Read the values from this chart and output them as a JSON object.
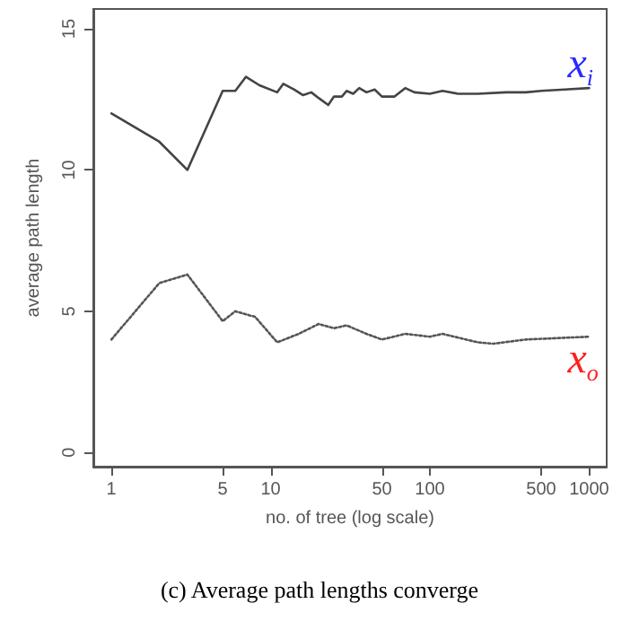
{
  "chart_data": {
    "type": "line",
    "title": "(c) Average path lengths converge",
    "xlabel": "no. of tree (log scale)",
    "ylabel": "average path length",
    "log": "x",
    "xlim": [
      0.77,
      1290
    ],
    "xticks": [
      1,
      5,
      10,
      50,
      100,
      500,
      1000
    ],
    "ylim": [
      -0.5,
      15.7
    ],
    "yticks": [
      0,
      5,
      10,
      15
    ],
    "grid": false,
    "marker": "none",
    "series": [
      {
        "color": "#444444",
        "line_style": "solid",
        "x": [
          1,
          2,
          3,
          5,
          6,
          7,
          8.5,
          11,
          12,
          14,
          16,
          18,
          20,
          23,
          25,
          28,
          30,
          33,
          36,
          40,
          45,
          50,
          60,
          70,
          80,
          100,
          120,
          150,
          200,
          300,
          400,
          500,
          700,
          1000
        ],
        "values": [
          12,
          11,
          10,
          12.8,
          12.8,
          13.3,
          13.0,
          12.75,
          13.05,
          12.85,
          12.65,
          12.75,
          12.55,
          12.3,
          12.6,
          12.6,
          12.8,
          12.7,
          12.9,
          12.75,
          12.85,
          12.6,
          12.6,
          12.9,
          12.75,
          12.7,
          12.8,
          12.7,
          12.7,
          12.75,
          12.75,
          12.8,
          12.85,
          12.9
        ]
      },
      {
        "color": "#555555",
        "line_style": "dotted",
        "x": [
          1,
          2,
          3,
          5,
          6,
          8,
          11,
          15,
          20,
          25,
          30,
          40,
          50,
          70,
          100,
          120,
          200,
          250,
          400,
          1000
        ],
        "values": [
          4.0,
          6.0,
          6.3,
          4.65,
          5.0,
          4.8,
          3.9,
          4.2,
          4.55,
          4.4,
          4.5,
          4.2,
          4.0,
          4.2,
          4.1,
          4.2,
          3.9,
          3.85,
          4.0,
          4.1
        ]
      }
    ],
    "annotations": [
      {
        "text": "x$_{i}$",
        "x": 1000,
        "y": 12.9
      },
      {
        "text": "x$_{o}$",
        "x": 1000,
        "y": 4.1
      }
    ]
  }
}
